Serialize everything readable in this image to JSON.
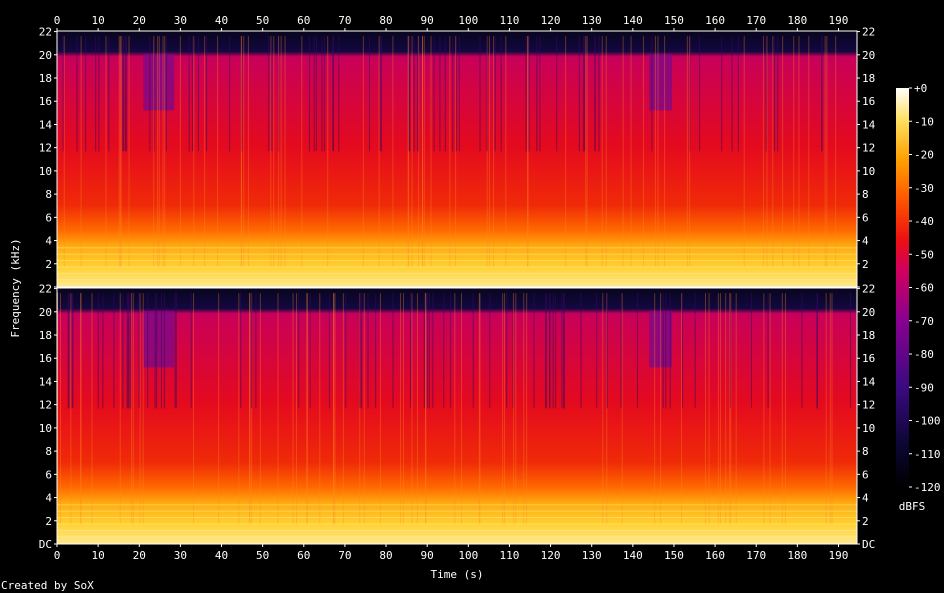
{
  "chart_data": {
    "type": "heatmap",
    "description_tool": "Created by SoX",
    "xlabel": "Time (s)",
    "ylabel": "Frequency (kHz)",
    "x_ticks": [
      0,
      10,
      20,
      30,
      40,
      50,
      60,
      70,
      80,
      90,
      100,
      110,
      120,
      130,
      140,
      150,
      160,
      170,
      180,
      190
    ],
    "xlim": [
      0,
      194.5
    ],
    "y_ticks": [
      "DC",
      "2",
      "4",
      "6",
      "8",
      "10",
      "12",
      "14",
      "16",
      "18",
      "20",
      "22"
    ],
    "ylim_khz": [
      0,
      22.05
    ],
    "channels": 2,
    "colorbar": {
      "label": "dBFS",
      "ticks": [
        "+0",
        "-10",
        "-20",
        "-30",
        "-40",
        "-50",
        "-60",
        "-70",
        "-80",
        "-90",
        "-100",
        "-110",
        "-120"
      ],
      "range": [
        -120,
        0
      ]
    },
    "quiet_segments_s": [
      [
        21,
        28.5
      ],
      [
        144,
        149.5
      ]
    ],
    "lowpass_cutoff_khz": 20,
    "colors": {
      "background": "#000000",
      "axis": "#ffffff"
    }
  },
  "credit": "Created by SoX"
}
